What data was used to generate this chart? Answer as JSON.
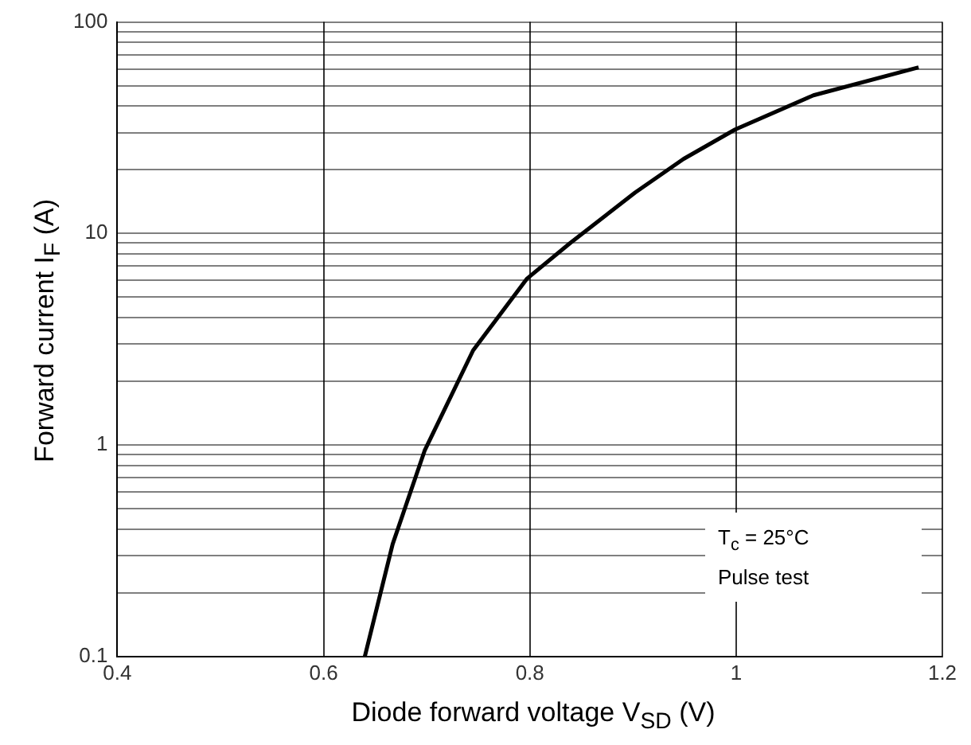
{
  "chart_data": {
    "type": "line",
    "xlabel": "Diode forward voltage V$_{SD}$ (V)",
    "ylabel": "Forward current I$_{F}$ (A)",
    "x": [
      0.64,
      0.667,
      0.698,
      0.745,
      0.797,
      0.839,
      0.902,
      0.949,
      0.999,
      1.075,
      1.177
    ],
    "series": [
      {
        "color": "#000000",
        "values": [
          0.1,
          0.34,
          0.94,
          2.8,
          6.1,
          9,
          15.6,
          22.5,
          31,
          45,
          61
        ]
      }
    ],
    "xlim": [
      0.4,
      1.2
    ],
    "xticks": [
      0.4,
      0.6,
      0.8,
      1,
      1.2
    ],
    "ylim": [
      0.1,
      100
    ],
    "log": "y",
    "yticks": [
      0.1,
      {
        "value": 0.2,
        "label": null
      },
      {
        "value": 0.3,
        "label": null
      },
      {
        "value": 0.4,
        "label": null
      },
      {
        "value": 0.5,
        "label": null
      },
      {
        "value": 0.6,
        "label": null
      },
      {
        "value": 0.7,
        "label": null
      },
      {
        "value": 0.8,
        "label": null
      },
      {
        "value": 0.9,
        "label": null
      },
      1,
      {
        "value": 2,
        "label": null
      },
      {
        "value": 3,
        "label": null
      },
      {
        "value": 4,
        "label": null
      },
      {
        "value": 5,
        "label": null
      },
      {
        "value": 6,
        "label": null
      },
      {
        "value": 7,
        "label": null
      },
      {
        "value": 8,
        "label": null
      },
      {
        "value": 9,
        "label": null
      },
      10,
      {
        "value": 20,
        "label": null
      },
      {
        "value": 30,
        "label": null
      },
      {
        "value": 40,
        "label": null
      },
      {
        "value": 50,
        "label": null
      },
      {
        "value": 60,
        "label": null
      },
      {
        "value": 70,
        "label": null
      },
      {
        "value": 80,
        "label": null
      },
      {
        "value": 90,
        "label": null
      },
      100
    ],
    "grid": true,
    "legend": false,
    "marker": "none",
    "line_style": "solid",
    "annotations": [
      "T$_{c}$ = 25°C",
      "Pulse test"
    ]
  }
}
